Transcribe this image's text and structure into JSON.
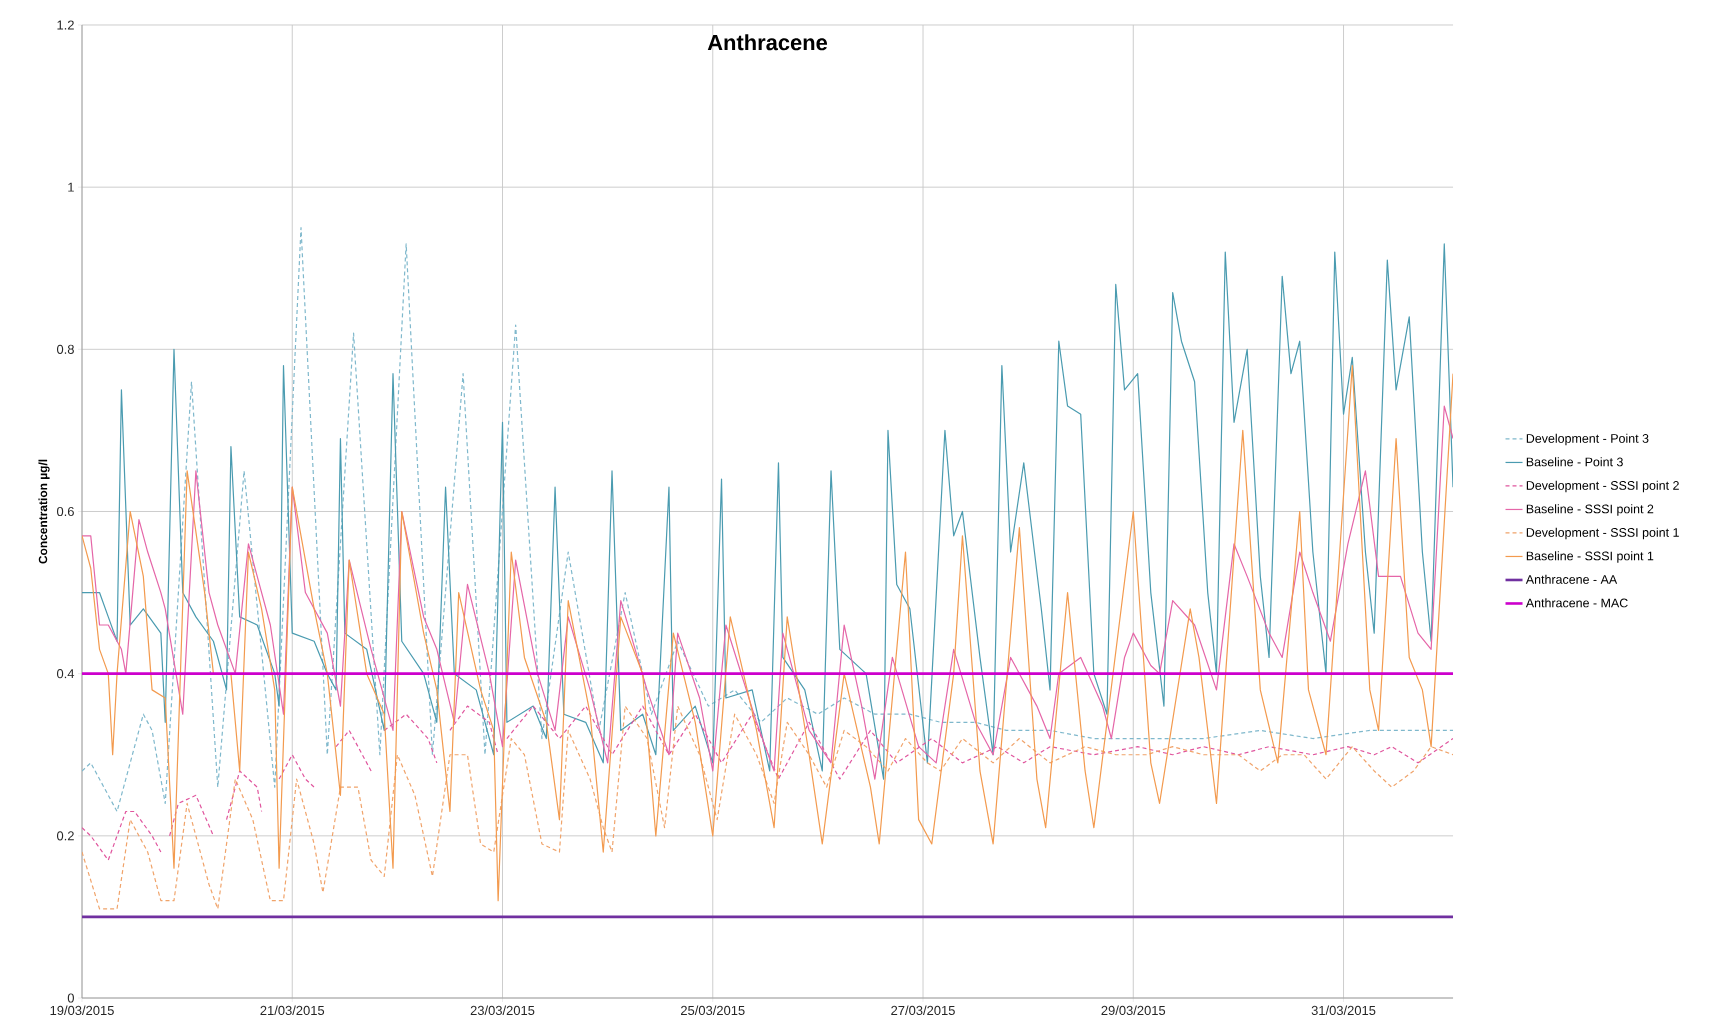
{
  "chart_data": {
    "type": "line",
    "title": "Anthracene",
    "ylabel": "Concentration µg/l",
    "xlim": [
      "2015-03-19T00:00",
      "2015-04-01T01:00"
    ],
    "xticks": [
      {
        "value": "2015-03-19",
        "label": "19/03/2015"
      },
      {
        "value": "2015-03-21",
        "label": "21/03/2015"
      },
      {
        "value": "2015-03-23",
        "label": "23/03/2015"
      },
      {
        "value": "2015-03-25",
        "label": "25/03/2015"
      },
      {
        "value": "2015-03-27",
        "label": "27/03/2015"
      },
      {
        "value": "2015-03-29",
        "label": "29/03/2015"
      },
      {
        "value": "2015-03-31",
        "label": "31/03/2015"
      }
    ],
    "ylim": [
      0,
      1.2
    ],
    "yticks": [
      0,
      0.2,
      0.4,
      0.6,
      0.8,
      1,
      1.2
    ],
    "grid": true,
    "legend": "right",
    "marker": "none",
    "series": [
      {
        "name": "Development - Point 3",
        "color": "#7fb8cc",
        "line_style": "dashed",
        "x": [
          "2015-03-19T00:00",
          "2015-03-19T02:00",
          "2015-03-19T08:00",
          "2015-03-19T14:00",
          "2015-03-19T16:00",
          "2015-03-19T19:00",
          "2015-03-20T01:00",
          "2015-03-20T07:00",
          "2015-03-20T13:00",
          "2015-03-20T20:00",
          "2015-03-21T02:00",
          "2015-03-21T08:00",
          "2015-03-21T14:00",
          "2015-03-21T20:00",
          "2015-03-22T02:00",
          "2015-03-22T08:00",
          "2015-03-22T15:00",
          "2015-03-22T20:00",
          "2015-03-23T03:00",
          "2015-03-23T09:00",
          "2015-03-23T15:00",
          "2015-03-23T22:00",
          "2015-03-24T04:00",
          "2015-03-24T10:00",
          "2015-03-24T16:00",
          "2015-03-24T23:00",
          "2015-03-25T05:00",
          "2015-03-25T11:00",
          "2015-03-25T17:00",
          "2015-03-26T00:00",
          "2015-03-26T06:00",
          "2015-03-26T13:00",
          "2015-03-26T21:00",
          "2015-03-27T04:00",
          "2015-03-27T12:00",
          "2015-03-27T19:00",
          "2015-03-28T05:00",
          "2015-03-28T15:00",
          "2015-03-29T04:00",
          "2015-03-29T16:00",
          "2015-03-30T05:00",
          "2015-03-30T17:00",
          "2015-03-31T06:00",
          "2015-03-31T16:00",
          "2015-04-01T01:00"
        ],
        "values": [
          0.28,
          0.29,
          0.23,
          0.35,
          0.33,
          0.24,
          0.76,
          0.26,
          0.65,
          0.26,
          0.95,
          0.3,
          0.82,
          0.3,
          0.93,
          0.3,
          0.77,
          0.3,
          0.83,
          0.32,
          0.55,
          0.33,
          0.5,
          0.35,
          0.44,
          0.36,
          0.38,
          0.34,
          0.37,
          0.35,
          0.37,
          0.35,
          0.35,
          0.34,
          0.34,
          0.33,
          0.33,
          0.32,
          0.32,
          0.32,
          0.33,
          0.32,
          0.33,
          0.33,
          0.33
        ]
      },
      {
        "name": "Baseline - Point 3",
        "color": "#4a9bb0",
        "line_style": "solid",
        "x": [
          "2015-03-19T00:00",
          "2015-03-19T04:00",
          "2015-03-19T06:00",
          "2015-03-19T08:00",
          "2015-03-19T09:00",
          "2015-03-19T11:00",
          "2015-03-19T14:00",
          "2015-03-19T18:00",
          "2015-03-19T19:00",
          "2015-03-19T21:00",
          "2015-03-19T23:00",
          "2015-03-20T02:00",
          "2015-03-20T06:00",
          "2015-03-20T09:00",
          "2015-03-20T10:00",
          "2015-03-20T12:00",
          "2015-03-20T16:00",
          "2015-03-20T20:00",
          "2015-03-20T21:00",
          "2015-03-20T22:00",
          "2015-03-21T00:00",
          "2015-03-21T05:00",
          "2015-03-21T08:00",
          "2015-03-21T10:00",
          "2015-03-21T11:00",
          "2015-03-21T12:00",
          "2015-03-21T17:00",
          "2015-03-21T21:00",
          "2015-03-21T23:00",
          "2015-03-22T01:00",
          "2015-03-22T06:00",
          "2015-03-22T09:00",
          "2015-03-22T11:00",
          "2015-03-22T13:00",
          "2015-03-22T18:00",
          "2015-03-22T22:00",
          "2015-03-23T00:00",
          "2015-03-23T01:00",
          "2015-03-23T07:00",
          "2015-03-23T10:00",
          "2015-03-23T12:00",
          "2015-03-23T14:00",
          "2015-03-23T19:00",
          "2015-03-23T23:00",
          "2015-03-24T01:00",
          "2015-03-24T03:00",
          "2015-03-24T08:00",
          "2015-03-24T11:00",
          "2015-03-24T14:00",
          "2015-03-24T15:00",
          "2015-03-24T20:00",
          "2015-03-25T00:00",
          "2015-03-25T02:00",
          "2015-03-25T03:00",
          "2015-03-25T09:00",
          "2015-03-25T13:00",
          "2015-03-25T15:00",
          "2015-03-25T16:00",
          "2015-03-25T21:00",
          "2015-03-26T01:00",
          "2015-03-26T03:00",
          "2015-03-26T05:00",
          "2015-03-26T11:00",
          "2015-03-26T15:00",
          "2015-03-26T16:00",
          "2015-03-26T18:00",
          "2015-03-26T21:00",
          "2015-03-27T01:00",
          "2015-03-27T05:00",
          "2015-03-27T07:00",
          "2015-03-27T09:00",
          "2015-03-27T13:00",
          "2015-03-27T16:00",
          "2015-03-27T18:00",
          "2015-03-27T20:00",
          "2015-03-27T23:00",
          "2015-03-28T03:00",
          "2015-03-28T05:00",
          "2015-03-28T07:00",
          "2015-03-28T09:00",
          "2015-03-28T12:00",
          "2015-03-28T15:00",
          "2015-03-28T18:00",
          "2015-03-28T20:00",
          "2015-03-28T22:00",
          "2015-03-29T01:00",
          "2015-03-29T04:00",
          "2015-03-29T07:00",
          "2015-03-29T09:00",
          "2015-03-29T11:00",
          "2015-03-29T14:00",
          "2015-03-29T17:00",
          "2015-03-29T19:00",
          "2015-03-29T21:00",
          "2015-03-29T23:00",
          "2015-03-30T02:00",
          "2015-03-30T05:00",
          "2015-03-30T07:00",
          "2015-03-30T10:00",
          "2015-03-30T12:00",
          "2015-03-30T14:00",
          "2015-03-30T17:00",
          "2015-03-30T20:00",
          "2015-03-30T22:00",
          "2015-03-31T00:00",
          "2015-03-31T02:00",
          "2015-03-31T05:00",
          "2015-03-31T07:00",
          "2015-03-31T10:00",
          "2015-03-31T12:00",
          "2015-03-31T15:00",
          "2015-03-31T18:00",
          "2015-03-31T20:00",
          "2015-03-31T23:00",
          "2015-04-01T01:00"
        ],
        "values": [
          0.5,
          0.5,
          0.47,
          0.44,
          0.75,
          0.46,
          0.48,
          0.45,
          0.34,
          0.8,
          0.5,
          0.47,
          0.44,
          0.38,
          0.68,
          0.47,
          0.46,
          0.4,
          0.36,
          0.78,
          0.45,
          0.44,
          0.4,
          0.38,
          0.69,
          0.45,
          0.43,
          0.33,
          0.77,
          0.44,
          0.4,
          0.34,
          0.63,
          0.4,
          0.38,
          0.3,
          0.71,
          0.34,
          0.36,
          0.32,
          0.63,
          0.35,
          0.34,
          0.29,
          0.65,
          0.33,
          0.35,
          0.3,
          0.63,
          0.33,
          0.36,
          0.29,
          0.64,
          0.37,
          0.38,
          0.28,
          0.66,
          0.42,
          0.38,
          0.28,
          0.65,
          0.43,
          0.4,
          0.27,
          0.7,
          0.51,
          0.48,
          0.29,
          0.7,
          0.57,
          0.6,
          0.42,
          0.3,
          0.78,
          0.55,
          0.66,
          0.48,
          0.38,
          0.81,
          0.73,
          0.72,
          0.4,
          0.35,
          0.88,
          0.75,
          0.77,
          0.5,
          0.36,
          0.87,
          0.81,
          0.76,
          0.5,
          0.4,
          0.92,
          0.71,
          0.8,
          0.52,
          0.42,
          0.89,
          0.77,
          0.81,
          0.55,
          0.4,
          0.92,
          0.72,
          0.79,
          0.55,
          0.45,
          0.91,
          0.75,
          0.84,
          0.55,
          0.44,
          0.93,
          0.63
        ]
      },
      {
        "name": "Development - SSSI point 2",
        "color": "#e0569e",
        "line_style": "dashed",
        "x": [
          "2015-03-19T00:00",
          "2015-03-19T02:00",
          "2015-03-19T06:00",
          "2015-03-19T08:00",
          "2015-03-19T10:00",
          "2015-03-19T12:00",
          "2015-03-19T16:00",
          "2015-03-19T18:00",
          "2015-03-19T19:00",
          "2015-03-19T20:00",
          "2015-03-19T22:00",
          "2015-03-20T02:00",
          "2015-03-20T06:00",
          "2015-03-20T07:00",
          "2015-03-20T09:00",
          "2015-03-20T12:00",
          "2015-03-20T16:00",
          "2015-03-20T17:00",
          "2015-03-20T19:00",
          "2015-03-20T21:00",
          "2015-03-21T00:00",
          "2015-03-21T03:00",
          "2015-03-21T05:00",
          "2015-03-21T07:00",
          "2015-03-21T10:00",
          "2015-03-21T13:00",
          "2015-03-21T18:00",
          "2015-03-21T19:00",
          "2015-03-21T21:00",
          "2015-03-22T02:00",
          "2015-03-22T07:00",
          "2015-03-22T09:00",
          "2015-03-22T10:00",
          "2015-03-22T12:00",
          "2015-03-22T16:00",
          "2015-03-22T21:00",
          "2015-03-22T23:00",
          "2015-03-23T00:00",
          "2015-03-23T01:00",
          "2015-03-23T07:00",
          "2015-03-23T13:00",
          "2015-03-23T19:00",
          "2015-03-24T01:00",
          "2015-03-24T08:00",
          "2015-03-24T14:00",
          "2015-03-24T20:00",
          "2015-03-25T02:00",
          "2015-03-25T09:00",
          "2015-03-25T15:00",
          "2015-03-25T22:00",
          "2015-03-26T05:00",
          "2015-03-26T12:00",
          "2015-03-26T18:00",
          "2015-03-27T02:00",
          "2015-03-27T09:00",
          "2015-03-27T17:00",
          "2015-03-27T23:00",
          "2015-03-28T05:00",
          "2015-03-28T15:00",
          "2015-03-29T01:00",
          "2015-03-29T09:00",
          "2015-03-29T16:00",
          "2015-03-30T00:00",
          "2015-03-30T07:00",
          "2015-03-30T17:00",
          "2015-03-31T01:00",
          "2015-03-31T07:00",
          "2015-03-31T11:00",
          "2015-03-31T17:00",
          "2015-04-01T01:00"
        ],
        "values": [
          0.21,
          0.2,
          0.17,
          0.2,
          0.23,
          0.23,
          0.2,
          0.18,
          null,
          0.2,
          0.24,
          0.25,
          0.2,
          null,
          0.22,
          0.28,
          0.26,
          0.23,
          null,
          0.27,
          0.3,
          0.27,
          0.26,
          null,
          0.31,
          0.33,
          0.28,
          null,
          0.33,
          0.35,
          0.32,
          0.29,
          null,
          0.33,
          0.36,
          0.34,
          0.3,
          null,
          0.32,
          0.36,
          0.32,
          0.36,
          0.3,
          0.36,
          0.3,
          0.35,
          0.29,
          0.35,
          0.27,
          0.34,
          0.27,
          0.33,
          0.29,
          0.32,
          0.29,
          0.31,
          0.29,
          0.31,
          0.3,
          0.31,
          0.3,
          0.31,
          0.3,
          0.31,
          0.3,
          0.31,
          0.3,
          0.31,
          0.29,
          0.32
        ]
      },
      {
        "name": "Baseline - SSSI point 2",
        "color": "#e566a8",
        "line_style": "solid",
        "x": [
          "2015-03-19T00:00",
          "2015-03-19T02:00",
          "2015-03-19T04:00",
          "2015-03-19T06:00",
          "2015-03-19T09:00",
          "2015-03-19T10:00",
          "2015-03-19T13:00",
          "2015-03-19T15:00",
          "2015-03-19T18:00",
          "2015-03-19T19:00",
          "2015-03-19T23:00",
          "2015-03-20T02:00",
          "2015-03-20T05:00",
          "2015-03-20T07:00",
          "2015-03-20T11:00",
          "2015-03-20T14:00",
          "2015-03-20T19:00",
          "2015-03-20T22:00",
          "2015-03-21T00:00",
          "2015-03-21T03:00",
          "2015-03-21T08:00",
          "2015-03-21T11:00",
          "2015-03-21T13:00",
          "2015-03-21T18:00",
          "2015-03-21T23:00",
          "2015-03-22T01:00",
          "2015-03-22T06:00",
          "2015-03-22T09:00",
          "2015-03-22T13:00",
          "2015-03-22T16:00",
          "2015-03-22T21:00",
          "2015-03-23T00:00",
          "2015-03-23T03:00",
          "2015-03-23T08:00",
          "2015-03-23T12:00",
          "2015-03-23T15:00",
          "2015-03-23T20:00",
          "2015-03-24T00:00",
          "2015-03-24T03:00",
          "2015-03-24T09:00",
          "2015-03-24T14:00",
          "2015-03-24T16:00",
          "2015-03-24T21:00",
          "2015-03-25T00:00",
          "2015-03-25T03:00",
          "2015-03-25T10:00",
          "2015-03-25T14:00",
          "2015-03-25T16:00",
          "2015-03-25T22:00",
          "2015-03-26T03:00",
          "2015-03-26T06:00",
          "2015-03-26T10:00",
          "2015-03-26T13:00",
          "2015-03-26T17:00",
          "2015-03-26T23:00",
          "2015-03-27T03:00",
          "2015-03-27T07:00",
          "2015-03-27T12:00",
          "2015-03-27T16:00",
          "2015-03-27T20:00",
          "2015-03-28T02:00",
          "2015-03-28T05:00",
          "2015-03-28T07:00",
          "2015-03-28T12:00",
          "2015-03-28T17:00",
          "2015-03-28T19:00",
          "2015-03-28T22:00",
          "2015-03-29T00:00",
          "2015-03-29T04:00",
          "2015-03-29T06:00",
          "2015-03-29T09:00",
          "2015-03-29T14:00",
          "2015-03-29T19:00",
          "2015-03-29T23:00",
          "2015-03-30T02:00",
          "2015-03-30T07:00",
          "2015-03-30T10:00",
          "2015-03-30T14:00",
          "2015-03-30T17:00",
          "2015-03-30T21:00",
          "2015-03-31T01:00",
          "2015-03-31T05:00",
          "2015-03-31T08:00",
          "2015-03-31T13:00",
          "2015-03-31T17:00",
          "2015-03-31T20:00",
          "2015-03-31T23:00",
          "2015-04-01T01:00"
        ],
        "values": [
          0.57,
          0.57,
          0.46,
          0.46,
          0.43,
          0.4,
          0.59,
          0.55,
          0.5,
          0.48,
          0.35,
          0.65,
          0.5,
          0.46,
          0.4,
          0.56,
          0.46,
          0.35,
          0.63,
          0.5,
          0.45,
          0.36,
          0.54,
          0.43,
          0.33,
          0.6,
          0.47,
          0.43,
          0.34,
          0.51,
          0.4,
          0.31,
          0.54,
          0.4,
          0.33,
          0.47,
          0.38,
          0.29,
          0.49,
          0.38,
          0.3,
          0.45,
          0.37,
          0.28,
          0.46,
          0.34,
          0.28,
          0.45,
          0.33,
          0.29,
          0.46,
          0.36,
          0.27,
          0.42,
          0.31,
          0.29,
          0.43,
          0.34,
          0.3,
          0.42,
          0.36,
          0.32,
          0.4,
          0.42,
          0.36,
          0.32,
          0.42,
          0.45,
          0.41,
          0.4,
          0.49,
          0.46,
          0.38,
          0.56,
          0.52,
          0.45,
          0.42,
          0.55,
          0.5,
          0.44,
          0.56,
          0.65,
          0.52,
          0.52,
          0.45,
          0.43,
          0.73,
          0.69
        ]
      },
      {
        "name": "Development - SSSI point 1",
        "color": "#f0a36a",
        "line_style": "dashed",
        "x": [
          "2015-03-19T00:00",
          "2015-03-19T04:00",
          "2015-03-19T08:00",
          "2015-03-19T11:00",
          "2015-03-19T15:00",
          "2015-03-19T18:00",
          "2015-03-19T21:00",
          "2015-03-20T00:00",
          "2015-03-20T05:00",
          "2015-03-20T07:00",
          "2015-03-20T11:00",
          "2015-03-20T15:00",
          "2015-03-20T19:00",
          "2015-03-20T22:00",
          "2015-03-21T01:00",
          "2015-03-21T05:00",
          "2015-03-21T07:00",
          "2015-03-21T11:00",
          "2015-03-21T15:00",
          "2015-03-21T18:00",
          "2015-03-21T21:00",
          "2015-03-22T00:00",
          "2015-03-22T04:00",
          "2015-03-22T08:00",
          "2015-03-22T12:00",
          "2015-03-22T16:00",
          "2015-03-22T19:00",
          "2015-03-22T22:00",
          "2015-03-23T02:00",
          "2015-03-23T05:00",
          "2015-03-23T09:00",
          "2015-03-23T13:00",
          "2015-03-23T15:00",
          "2015-03-23T20:00",
          "2015-03-23T23:00",
          "2015-03-24T01:00",
          "2015-03-24T04:00",
          "2015-03-24T09:00",
          "2015-03-24T13:00",
          "2015-03-24T16:00",
          "2015-03-24T21:00",
          "2015-03-25T01:00",
          "2015-03-25T05:00",
          "2015-03-25T10:00",
          "2015-03-25T14:00",
          "2015-03-25T17:00",
          "2015-03-25T22:00",
          "2015-03-26T02:00",
          "2015-03-26T06:00",
          "2015-03-26T11:00",
          "2015-03-26T16:00",
          "2015-03-26T20:00",
          "2015-03-27T01:00",
          "2015-03-27T04:00",
          "2015-03-27T09:00",
          "2015-03-27T16:00",
          "2015-03-27T22:00",
          "2015-03-28T05:00",
          "2015-03-28T13:00",
          "2015-03-28T20:00",
          "2015-03-29T03:00",
          "2015-03-29T09:00",
          "2015-03-29T16:00",
          "2015-03-30T00:00",
          "2015-03-30T05:00",
          "2015-03-30T10:00",
          "2015-03-30T15:00",
          "2015-03-30T20:00",
          "2015-03-31T02:00",
          "2015-03-31T07:00",
          "2015-03-31T11:00",
          "2015-03-31T16:00",
          "2015-03-31T20:00",
          "2015-04-01T01:00"
        ],
        "values": [
          0.18,
          0.11,
          0.11,
          0.22,
          0.18,
          0.12,
          0.12,
          0.24,
          0.14,
          0.11,
          0.27,
          0.22,
          0.12,
          0.12,
          0.27,
          0.19,
          0.13,
          0.26,
          0.26,
          0.17,
          0.15,
          0.3,
          0.25,
          0.15,
          0.3,
          0.3,
          0.19,
          0.18,
          0.32,
          0.3,
          0.19,
          0.18,
          0.33,
          0.27,
          0.21,
          0.18,
          0.36,
          0.32,
          0.21,
          0.36,
          0.3,
          0.22,
          0.35,
          0.3,
          0.24,
          0.34,
          0.3,
          0.26,
          0.33,
          0.31,
          0.28,
          0.32,
          0.29,
          0.28,
          0.32,
          0.29,
          0.32,
          0.29,
          0.31,
          0.3,
          0.3,
          0.31,
          0.3,
          0.3,
          0.28,
          0.3,
          0.3,
          0.27,
          0.31,
          0.28,
          0.26,
          0.28,
          0.31,
          0.3
        ]
      },
      {
        "name": "Baseline - SSSI point 1",
        "color": "#f39a4e",
        "line_style": "solid",
        "x": [
          "2015-03-19T00:00",
          "2015-03-19T02:00",
          "2015-03-19T04:00",
          "2015-03-19T06:00",
          "2015-03-19T07:00",
          "2015-03-19T08:00",
          "2015-03-19T11:00",
          "2015-03-19T14:00",
          "2015-03-19T16:00",
          "2015-03-19T19:00",
          "2015-03-19T21:00",
          "2015-03-20T00:00",
          "2015-03-20T04:00",
          "2015-03-20T06:00",
          "2015-03-20T10:00",
          "2015-03-20T12:00",
          "2015-03-20T14:00",
          "2015-03-20T17:00",
          "2015-03-20T20:00",
          "2015-03-20T21:00",
          "2015-03-21T00:00",
          "2015-03-21T05:00",
          "2015-03-21T08:00",
          "2015-03-21T11:00",
          "2015-03-21T13:00",
          "2015-03-21T17:00",
          "2015-03-21T21:00",
          "2015-03-21T23:00",
          "2015-03-22T01:00",
          "2015-03-22T06:00",
          "2015-03-22T09:00",
          "2015-03-22T12:00",
          "2015-03-22T14:00",
          "2015-03-22T19:00",
          "2015-03-22T22:00",
          "2015-03-22T23:00",
          "2015-03-23T02:00",
          "2015-03-23T05:00",
          "2015-03-23T10:00",
          "2015-03-23T13:00",
          "2015-03-23T15:00",
          "2015-03-23T20:00",
          "2015-03-23T23:00",
          "2015-03-24T03:00",
          "2015-03-24T08:00",
          "2015-03-24T11:00",
          "2015-03-24T15:00",
          "2015-03-24T20:00",
          "2015-03-25T00:00",
          "2015-03-25T04:00",
          "2015-03-25T10:00",
          "2015-03-25T14:00",
          "2015-03-25T17:00",
          "2015-03-25T22:00",
          "2015-03-26T01:00",
          "2015-03-26T06:00",
          "2015-03-26T12:00",
          "2015-03-26T14:00",
          "2015-03-26T20:00",
          "2015-03-26T23:00",
          "2015-03-27T02:00",
          "2015-03-27T07:00",
          "2015-03-27T09:00",
          "2015-03-27T13:00",
          "2015-03-27T16:00",
          "2015-03-27T22:00",
          "2015-03-28T02:00",
          "2015-03-28T04:00",
          "2015-03-28T09:00",
          "2015-03-28T13:00",
          "2015-03-28T15:00",
          "2015-03-29T00:00",
          "2015-03-29T04:00",
          "2015-03-29T06:00",
          "2015-03-29T13:00",
          "2015-03-29T15:00",
          "2015-03-29T19:00",
          "2015-03-30T01:00",
          "2015-03-30T05:00",
          "2015-03-30T09:00",
          "2015-03-30T14:00",
          "2015-03-30T16:00",
          "2015-03-30T20:00",
          "2015-03-31T02:00",
          "2015-03-31T06:00",
          "2015-03-31T08:00",
          "2015-03-31T12:00",
          "2015-03-31T15:00",
          "2015-03-31T18:00",
          "2015-03-31T20:00",
          "2015-04-01T01:00"
        ],
        "values": [
          0.57,
          0.53,
          0.43,
          0.4,
          0.3,
          0.4,
          0.6,
          0.52,
          0.38,
          0.37,
          0.16,
          0.65,
          0.5,
          0.4,
          0.4,
          0.28,
          0.55,
          0.48,
          0.38,
          0.16,
          0.63,
          0.48,
          0.4,
          0.25,
          0.54,
          0.4,
          0.35,
          0.16,
          0.6,
          0.45,
          0.38,
          0.23,
          0.5,
          0.38,
          0.33,
          0.12,
          0.55,
          0.42,
          0.34,
          0.22,
          0.49,
          0.35,
          0.18,
          0.47,
          0.4,
          0.2,
          0.45,
          0.34,
          0.2,
          0.47,
          0.33,
          0.21,
          0.47,
          0.3,
          0.19,
          0.4,
          0.26,
          0.19,
          0.55,
          0.22,
          0.19,
          0.4,
          0.57,
          0.28,
          0.19,
          0.58,
          0.27,
          0.21,
          0.5,
          0.28,
          0.21,
          0.6,
          0.29,
          0.24,
          0.48,
          0.42,
          0.24,
          0.7,
          0.38,
          0.29,
          0.6,
          0.38,
          0.3,
          0.78,
          0.38,
          0.33,
          0.69,
          0.42,
          0.38,
          0.31,
          0.77
        ]
      }
    ],
    "ref_lines": [
      {
        "axis": "y",
        "value": 0.1,
        "label": "Anthracene - AA",
        "color": "#7030a0"
      },
      {
        "axis": "y",
        "value": 0.4,
        "label": "Anthracene - MAC",
        "color": "#cc00cc"
      }
    ]
  }
}
